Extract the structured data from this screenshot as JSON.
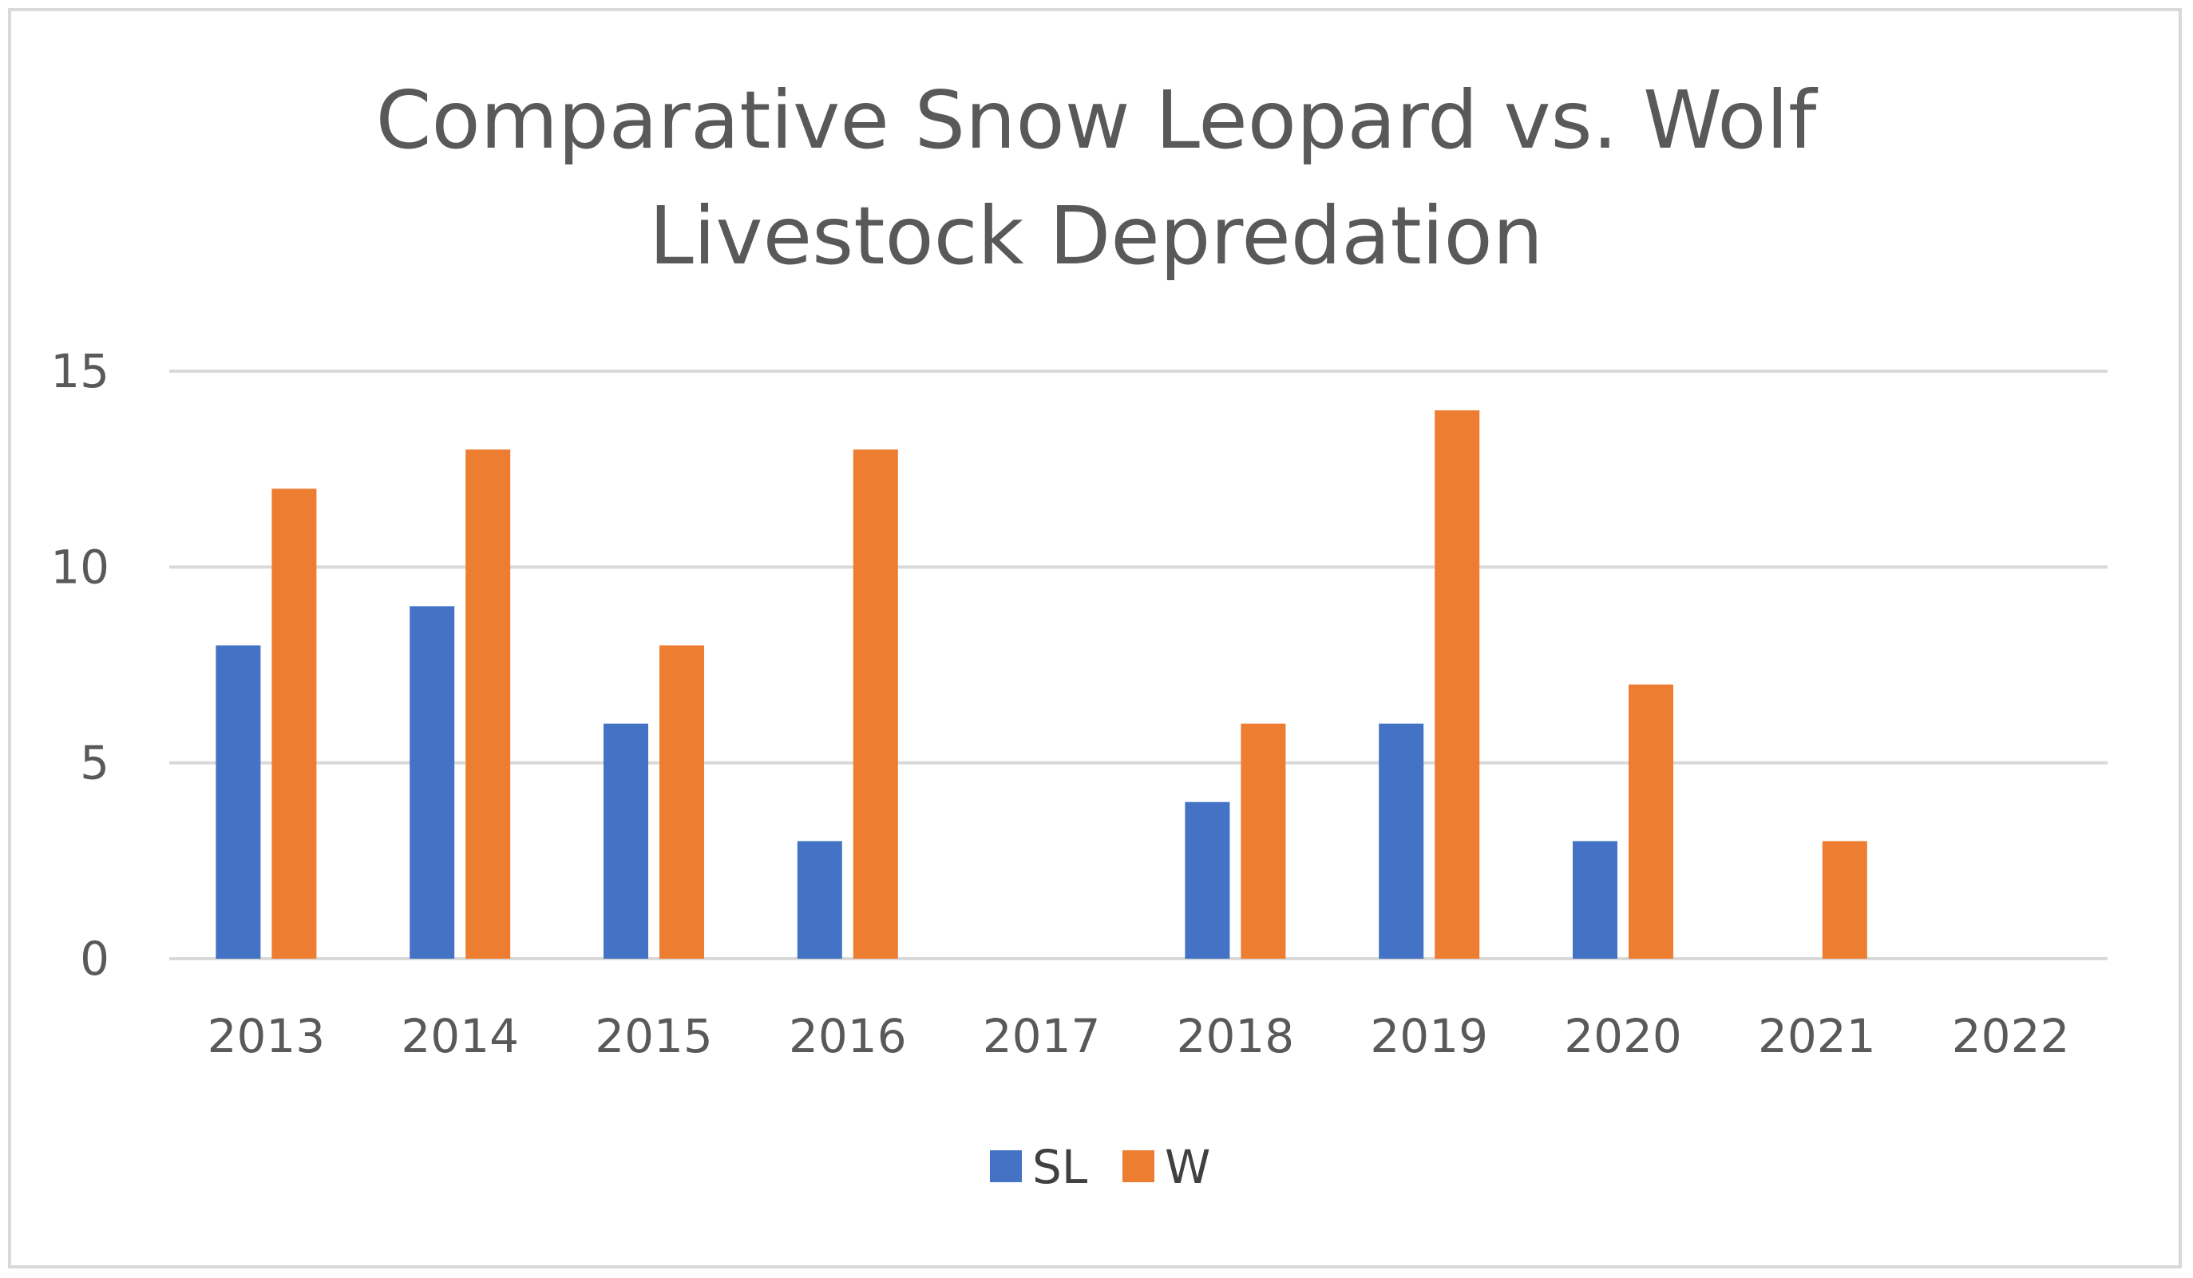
{
  "chart_data": {
    "type": "bar",
    "title": "Comparative Snow Leopard vs. Wolf Livestock Depredation",
    "title_lines": [
      "Comparative Snow Leopard vs. Wolf",
      "Livestock Depredation"
    ],
    "xlabel": "",
    "ylabel": "",
    "categories": [
      "2013",
      "2014",
      "2015",
      "2016",
      "2017",
      "2018",
      "2019",
      "2020",
      "2021",
      "2022"
    ],
    "series": [
      {
        "name": "SL",
        "color": "#4472c4",
        "values": [
          8,
          9,
          6,
          3,
          0,
          4,
          6,
          3,
          0,
          0
        ]
      },
      {
        "name": "W",
        "color": "#ed7d31",
        "values": [
          12,
          13,
          8,
          13,
          0,
          6,
          14,
          7,
          3,
          0
        ]
      }
    ],
    "ylim": [
      0,
      15
    ],
    "yticks": [
      0,
      5,
      10,
      15
    ],
    "grid": true,
    "legend_position": "bottom"
  }
}
